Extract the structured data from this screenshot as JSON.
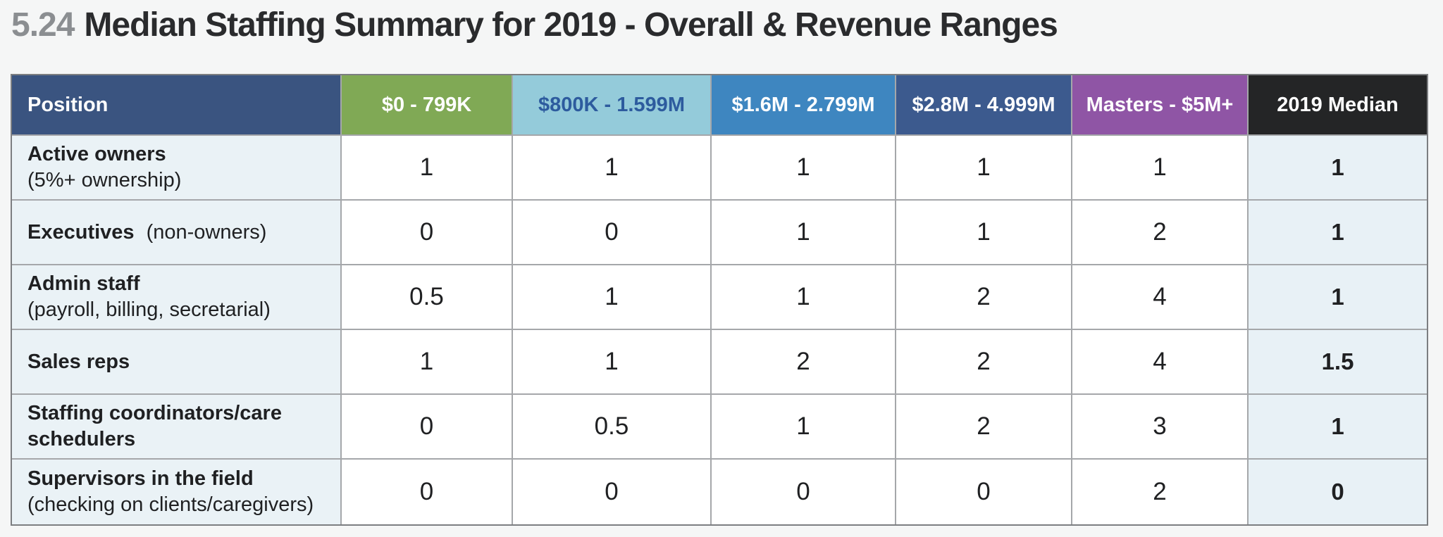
{
  "title": {
    "number": "5.24",
    "text": "Median Staffing Summary for 2019 - Overall & Revenue Ranges"
  },
  "palette": {
    "page_bg": "#f5f6f6",
    "title_number": "#8b8e91",
    "title_text": "#2a2b2d",
    "border_outer": "#7c7e81",
    "border_inner": "#a5a7aa",
    "row_label_bg": "#eaf2f6",
    "median_bg": "#e8f1f6",
    "cell_bg": "#ffffff",
    "text": "#1f2022"
  },
  "table": {
    "columns": [
      {
        "label": "Position",
        "bg": "#3a5480",
        "color": "#ffffff"
      },
      {
        "label": "$0 - 799K",
        "bg": "#80a955",
        "color": "#ffffff"
      },
      {
        "label": "$800K - 1.599M",
        "bg": "#94cbda",
        "color": "#2d5b9e"
      },
      {
        "label": "$1.6M - 2.799M",
        "bg": "#3e86c0",
        "color": "#ffffff"
      },
      {
        "label": "$2.8M - 4.999M",
        "bg": "#3c5a8e",
        "color": "#ffffff"
      },
      {
        "label": "Masters - $5M+",
        "bg": "#8f55a5",
        "color": "#ffffff"
      },
      {
        "label": "2019 Median",
        "bg": "#242526",
        "color": "#ffffff"
      }
    ],
    "rows": [
      {
        "position": "Active owners",
        "detail": "(5%+ ownership)",
        "values": [
          "1",
          "1",
          "1",
          "1",
          "1"
        ],
        "median": "1"
      },
      {
        "position": "Executives",
        "detail": "(non-owners)",
        "values": [
          "0",
          "0",
          "1",
          "1",
          "2"
        ],
        "median": "1"
      },
      {
        "position": "Admin staff",
        "detail": "(payroll, billing, secretarial)",
        "values": [
          "0.5",
          "1",
          "1",
          "2",
          "4"
        ],
        "median": "1"
      },
      {
        "position": "Sales reps",
        "detail": "",
        "values": [
          "1",
          "1",
          "2",
          "2",
          "4"
        ],
        "median": "1.5"
      },
      {
        "position": "Staffing coordinators/care schedulers",
        "detail": "",
        "values": [
          "0",
          "0.5",
          "1",
          "2",
          "3"
        ],
        "median": "1"
      },
      {
        "position": "Supervisors in the field",
        "detail": "(checking on clients/caregivers)",
        "values": [
          "0",
          "0",
          "0",
          "0",
          "2"
        ],
        "median": "0"
      }
    ]
  },
  "chart_data": {
    "type": "table",
    "title": "5.24 Median Staffing Summary for 2019 - Overall & Revenue Ranges",
    "columns": [
      "Position",
      "$0 - 799K",
      "$800K - 1.599M",
      "$1.6M - 2.799M",
      "$2.8M - 4.999M",
      "Masters - $5M+",
      "2019 Median"
    ],
    "rows": [
      [
        "Active owners (5%+ ownership)",
        1,
        1,
        1,
        1,
        1,
        1
      ],
      [
        "Executives (non-owners)",
        0,
        0,
        1,
        1,
        2,
        1
      ],
      [
        "Admin staff (payroll, billing, secretarial)",
        0.5,
        1,
        1,
        2,
        4,
        1
      ],
      [
        "Sales reps",
        1,
        1,
        2,
        2,
        4,
        1.5
      ],
      [
        "Staffing coordinators/care schedulers",
        0,
        0.5,
        1,
        2,
        3,
        1
      ],
      [
        "Supervisors in the field (checking on clients/caregivers)",
        0,
        0,
        0,
        0,
        2,
        0
      ]
    ]
  }
}
